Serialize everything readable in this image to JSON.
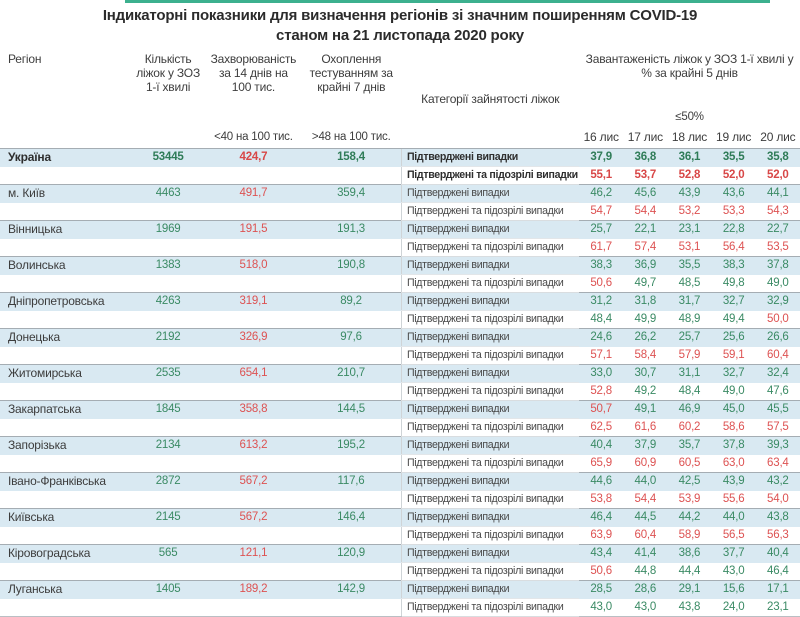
{
  "title": {
    "line1": "Індикаторні показники для визначення регіонів зі значним поширенням COVID-19",
    "line2": "станом на 21 листопада 2020 року"
  },
  "colors": {
    "accent_line": "#3cb08e",
    "good_value": "#3a8a64",
    "bad_value": "#dd5252",
    "row_highlight_bg": "#d9e9f2"
  },
  "chart_data": {
    "type": "table",
    "title": "Індикаторні показники для визначення регіонів зі значним поширенням COVID-19 станом на 21 листопада 2020 року",
    "header": {
      "region": "Регіон",
      "beds": "Кількість ліжок у ЗОЗ 1-ї хвилі",
      "incidence": "Захворюваність за 14 днів на 100 тис.",
      "incidence_threshold": "<40 на 100 тис.",
      "testing": "Охоплення тестуванням за крайні 7 днів",
      "testing_threshold": ">48 на 100 тис.",
      "category": "Категорії зайнятості ліжок",
      "occupancy": "Завантаженість ліжок у ЗОЗ 1-ї хвилі у % за крайні 5 днів",
      "occupancy_threshold": "≤50%",
      "dates": [
        "16 лис",
        "17 лис",
        "18 лис",
        "19 лис",
        "20 лис"
      ]
    },
    "row_labels": {
      "confirmed": "Підтверджені випадки",
      "suspected": "Підтверджені та підозрілі випадки"
    },
    "column_value_colors": {
      "beds": "g",
      "incidence": "r",
      "testing": "g"
    },
    "rows": [
      {
        "name": "Україна",
        "bold": true,
        "beds": "53445",
        "incidence": "424,7",
        "testing": "158,4",
        "confirmed": [
          "37,9",
          "36,8",
          "36,1",
          "35,5",
          "35,8"
        ],
        "confirmed_colors": [
          "g",
          "g",
          "g",
          "g",
          "g"
        ],
        "suspected": [
          "55,1",
          "53,7",
          "52,8",
          "52,0",
          "52,0"
        ],
        "suspected_colors": [
          "r",
          "r",
          "r",
          "r",
          "r"
        ]
      },
      {
        "name": "м. Київ",
        "bold": false,
        "beds": "4463",
        "incidence": "491,7",
        "testing": "359,4",
        "confirmed": [
          "46,2",
          "45,6",
          "43,9",
          "43,6",
          "44,1"
        ],
        "confirmed_colors": [
          "g",
          "g",
          "g",
          "g",
          "g"
        ],
        "suspected": [
          "54,7",
          "54,4",
          "53,2",
          "53,3",
          "54,3"
        ],
        "suspected_colors": [
          "r",
          "r",
          "r",
          "r",
          "r"
        ]
      },
      {
        "name": "Вінницька",
        "bold": false,
        "beds": "1969",
        "incidence": "191,5",
        "testing": "191,3",
        "confirmed": [
          "25,7",
          "22,1",
          "23,1",
          "22,8",
          "22,7"
        ],
        "confirmed_colors": [
          "g",
          "g",
          "g",
          "g",
          "g"
        ],
        "suspected": [
          "61,7",
          "57,4",
          "53,1",
          "56,4",
          "53,5"
        ],
        "suspected_colors": [
          "r",
          "r",
          "r",
          "r",
          "r"
        ]
      },
      {
        "name": "Волинська",
        "bold": false,
        "beds": "1383",
        "incidence": "518,0",
        "testing": "190,8",
        "confirmed": [
          "38,3",
          "36,9",
          "35,5",
          "38,3",
          "37,8"
        ],
        "confirmed_colors": [
          "g",
          "g",
          "g",
          "g",
          "g"
        ],
        "suspected": [
          "50,6",
          "49,7",
          "48,5",
          "49,8",
          "49,0"
        ],
        "suspected_colors": [
          "r",
          "g",
          "g",
          "g",
          "g"
        ]
      },
      {
        "name": "Дніпропетровська",
        "bold": false,
        "beds": "4263",
        "incidence": "319,1",
        "testing": "89,2",
        "confirmed": [
          "31,2",
          "31,8",
          "31,7",
          "32,7",
          "32,9"
        ],
        "confirmed_colors": [
          "g",
          "g",
          "g",
          "g",
          "g"
        ],
        "suspected": [
          "48,4",
          "49,9",
          "48,9",
          "49,4",
          "50,0"
        ],
        "suspected_colors": [
          "g",
          "g",
          "g",
          "g",
          "r"
        ]
      },
      {
        "name": "Донецька",
        "bold": false,
        "beds": "2192",
        "incidence": "326,9",
        "testing": "97,6",
        "confirmed": [
          "24,6",
          "26,2",
          "25,7",
          "25,6",
          "26,6"
        ],
        "confirmed_colors": [
          "g",
          "g",
          "g",
          "g",
          "g"
        ],
        "suspected": [
          "57,1",
          "58,4",
          "57,9",
          "59,1",
          "60,4"
        ],
        "suspected_colors": [
          "r",
          "r",
          "r",
          "r",
          "r"
        ]
      },
      {
        "name": "Житомирська",
        "bold": false,
        "beds": "2535",
        "incidence": "654,1",
        "testing": "210,7",
        "confirmed": [
          "33,0",
          "30,7",
          "31,1",
          "32,7",
          "32,4"
        ],
        "confirmed_colors": [
          "g",
          "g",
          "g",
          "g",
          "g"
        ],
        "suspected": [
          "52,8",
          "49,2",
          "48,4",
          "49,0",
          "47,6"
        ],
        "suspected_colors": [
          "r",
          "g",
          "g",
          "g",
          "g"
        ]
      },
      {
        "name": "Закарпатська",
        "bold": false,
        "beds": "1845",
        "incidence": "358,8",
        "testing": "144,5",
        "confirmed": [
          "50,7",
          "49,1",
          "46,9",
          "45,0",
          "45,5"
        ],
        "confirmed_colors": [
          "r",
          "g",
          "g",
          "g",
          "g"
        ],
        "suspected": [
          "62,5",
          "61,6",
          "60,2",
          "58,6",
          "57,5"
        ],
        "suspected_colors": [
          "r",
          "r",
          "r",
          "r",
          "r"
        ]
      },
      {
        "name": "Запорізька",
        "bold": false,
        "beds": "2134",
        "incidence": "613,2",
        "testing": "195,2",
        "confirmed": [
          "40,4",
          "37,9",
          "35,7",
          "37,8",
          "39,3"
        ],
        "confirmed_colors": [
          "g",
          "g",
          "g",
          "g",
          "g"
        ],
        "suspected": [
          "65,9",
          "60,9",
          "60,5",
          "63,0",
          "63,4"
        ],
        "suspected_colors": [
          "r",
          "r",
          "r",
          "r",
          "r"
        ]
      },
      {
        "name": "Івано-Франківська",
        "bold": false,
        "beds": "2872",
        "incidence": "567,2",
        "testing": "117,6",
        "confirmed": [
          "44,6",
          "44,0",
          "42,5",
          "43,9",
          "43,2"
        ],
        "confirmed_colors": [
          "g",
          "g",
          "g",
          "g",
          "g"
        ],
        "suspected": [
          "53,8",
          "54,4",
          "53,9",
          "55,6",
          "54,0"
        ],
        "suspected_colors": [
          "r",
          "r",
          "r",
          "r",
          "r"
        ]
      },
      {
        "name": "Київська",
        "bold": false,
        "beds": "2145",
        "incidence": "567,2",
        "testing": "146,4",
        "confirmed": [
          "46,4",
          "44,5",
          "44,2",
          "44,0",
          "43,8"
        ],
        "confirmed_colors": [
          "g",
          "g",
          "g",
          "g",
          "g"
        ],
        "suspected": [
          "63,9",
          "60,4",
          "58,9",
          "56,5",
          "56,3"
        ],
        "suspected_colors": [
          "r",
          "r",
          "r",
          "r",
          "r"
        ]
      },
      {
        "name": "Кіровоградська",
        "bold": false,
        "beds": "565",
        "incidence": "121,1",
        "testing": "120,9",
        "confirmed": [
          "43,4",
          "41,4",
          "38,6",
          "37,7",
          "40,4"
        ],
        "confirmed_colors": [
          "g",
          "g",
          "g",
          "g",
          "g"
        ],
        "suspected": [
          "50,6",
          "44,8",
          "44,4",
          "43,0",
          "46,4"
        ],
        "suspected_colors": [
          "r",
          "g",
          "g",
          "g",
          "g"
        ]
      },
      {
        "name": "Луганська",
        "bold": false,
        "beds": "1405",
        "incidence": "189,2",
        "testing": "142,9",
        "confirmed": [
          "28,5",
          "28,6",
          "29,1",
          "15,6",
          "17,1"
        ],
        "confirmed_colors": [
          "g",
          "g",
          "g",
          "g",
          "g"
        ],
        "suspected": [
          "43,0",
          "43,0",
          "43,8",
          "24,0",
          "23,1"
        ],
        "suspected_colors": [
          "g",
          "g",
          "g",
          "g",
          "g"
        ]
      }
    ]
  }
}
